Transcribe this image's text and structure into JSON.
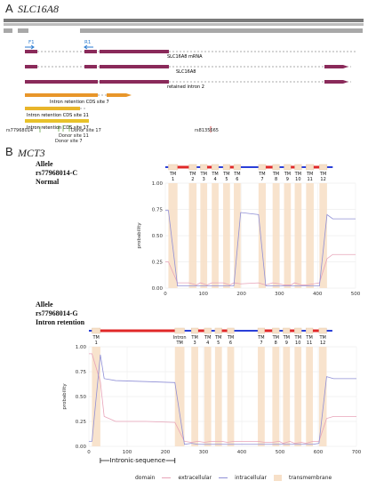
{
  "panelA": {
    "letter": "A",
    "title": "SLC16A8",
    "primers": [
      "F1",
      "R1"
    ],
    "tracks": [
      {
        "label": "SLC16A8 mRNA"
      },
      {
        "label": "SLC16A8"
      },
      {
        "label": "retained intron 2"
      },
      {
        "label": "Intron retention CDS site 7"
      },
      {
        "label": "Intron retention CDS site 11"
      },
      {
        "label": "Intron retention CDS site 17"
      }
    ],
    "variants": [
      "rs77968014",
      "Donor site 7",
      "Donor site 11",
      "Donor site 17",
      "rs8135665"
    ]
  },
  "panelB": {
    "letter": "B",
    "title": "MCT3",
    "colors": {
      "extracellular": "#e8a3b8",
      "intracellular": "#8f8fd6",
      "transmembrane": "#f7e0c8",
      "topbar_blue": "#2a3fd8",
      "topbar_red": "#e02828"
    }
  },
  "chart_data": [
    {
      "type": "line",
      "allele_lines": [
        "Allele",
        "rs77968014-C",
        "Normal"
      ],
      "ylabel": "probability",
      "xlim": [
        0,
        500
      ],
      "ylim": [
        0,
        1
      ],
      "xticks": [
        "0",
        "100",
        "200",
        "300",
        "400",
        "500"
      ],
      "yticks": [
        "0.00",
        "0.25",
        "0.50",
        "0.75",
        "1.00"
      ],
      "tm_labels": [
        "TM 1",
        "TM 2",
        "TM 3",
        "TM 4",
        "TM 5",
        "TM 6",
        "TM 7",
        "TM 8",
        "TM 9",
        "TM 10",
        "TM 11",
        "TM 12"
      ],
      "tm_segments": [
        [
          8,
          32
        ],
        [
          62,
          82
        ],
        [
          92,
          110
        ],
        [
          122,
          140
        ],
        [
          152,
          170
        ],
        [
          180,
          198
        ],
        [
          245,
          264
        ],
        [
          282,
          300
        ],
        [
          312,
          330
        ],
        [
          340,
          358
        ],
        [
          370,
          390
        ],
        [
          405,
          425
        ]
      ],
      "series": [
        {
          "name": "extracellular",
          "x": [
            0,
            8,
            32,
            62,
            82,
            92,
            110,
            122,
            140,
            152,
            170,
            180,
            198,
            245,
            264,
            282,
            300,
            312,
            330,
            340,
            358,
            370,
            390,
            405,
            425,
            440,
            500
          ],
          "y": [
            0.25,
            0.25,
            0.05,
            0.05,
            0.03,
            0.05,
            0.03,
            0.05,
            0.05,
            0.05,
            0.03,
            0.05,
            0.04,
            0.05,
            0.03,
            0.05,
            0.04,
            0.03,
            0.03,
            0.05,
            0.03,
            0.03,
            0.04,
            0.05,
            0.28,
            0.32,
            0.32
          ]
        },
        {
          "name": "intracellular",
          "x": [
            0,
            8,
            32,
            62,
            82,
            92,
            110,
            122,
            140,
            152,
            170,
            180,
            198,
            245,
            264,
            282,
            300,
            312,
            330,
            340,
            358,
            370,
            390,
            405,
            425,
            440,
            500
          ],
          "y": [
            0.74,
            0.74,
            0.02,
            0.02,
            0.02,
            0.02,
            0.02,
            0.02,
            0.02,
            0.02,
            0.02,
            0.02,
            0.72,
            0.7,
            0.02,
            0.02,
            0.02,
            0.02,
            0.02,
            0.02,
            0.02,
            0.02,
            0.02,
            0.02,
            0.7,
            0.66,
            0.66
          ]
        }
      ]
    },
    {
      "type": "line",
      "allele_lines": [
        "Allele",
        "rs77968014-G",
        "Intron retention"
      ],
      "ylabel": "probability",
      "xlim": [
        0,
        700
      ],
      "ylim": [
        0,
        1
      ],
      "xticks": [
        "0",
        "100",
        "200",
        "300",
        "400",
        "500",
        "600",
        "700"
      ],
      "yticks": [
        "0.00",
        "0.25",
        "0.50",
        "0.75",
        "1.00"
      ],
      "tm_labels": [
        "TM 1",
        "Intron TM",
        "TM 3",
        "TM 4",
        "TM 5",
        "TM 6",
        "TM 7",
        "TM 8",
        "TM 9",
        "TM 10",
        "TM 11",
        "TM 12"
      ],
      "tm_segments": [
        [
          8,
          30
        ],
        [
          225,
          250
        ],
        [
          268,
          286
        ],
        [
          302,
          320
        ],
        [
          330,
          348
        ],
        [
          362,
          380
        ],
        [
          442,
          460
        ],
        [
          480,
          498
        ],
        [
          508,
          526
        ],
        [
          538,
          556
        ],
        [
          568,
          586
        ],
        [
          602,
          622
        ]
      ],
      "series": [
        {
          "name": "extracellular",
          "x": [
            0,
            8,
            30,
            40,
            70,
            150,
            225,
            250,
            268,
            286,
            302,
            320,
            330,
            348,
            362,
            380,
            442,
            460,
            480,
            498,
            508,
            526,
            538,
            556,
            568,
            586,
            602,
            622,
            640,
            700
          ],
          "y": [
            0.93,
            0.93,
            0.65,
            0.3,
            0.25,
            0.25,
            0.24,
            0.05,
            0.04,
            0.05,
            0.04,
            0.05,
            0.05,
            0.05,
            0.04,
            0.05,
            0.05,
            0.04,
            0.04,
            0.05,
            0.03,
            0.05,
            0.03,
            0.04,
            0.03,
            0.05,
            0.05,
            0.28,
            0.3,
            0.3
          ]
        },
        {
          "name": "intracellular",
          "x": [
            0,
            8,
            30,
            40,
            70,
            150,
            225,
            250,
            268,
            286,
            302,
            320,
            330,
            348,
            362,
            380,
            442,
            460,
            480,
            498,
            508,
            526,
            538,
            556,
            568,
            586,
            602,
            622,
            640,
            700
          ],
          "y": [
            0.05,
            0.05,
            0.92,
            0.68,
            0.66,
            0.65,
            0.64,
            0.02,
            0.03,
            0.02,
            0.02,
            0.02,
            0.02,
            0.02,
            0.02,
            0.02,
            0.02,
            0.02,
            0.02,
            0.02,
            0.02,
            0.02,
            0.02,
            0.02,
            0.02,
            0.02,
            0.03,
            0.7,
            0.68,
            0.68
          ]
        }
      ],
      "annotation": {
        "label": "Intronic sequence",
        "x_range": [
          30,
          225
        ]
      }
    }
  ],
  "legend": {
    "title": "domain",
    "items": [
      "extracellular",
      "intracellular",
      "transmembrane"
    ]
  }
}
